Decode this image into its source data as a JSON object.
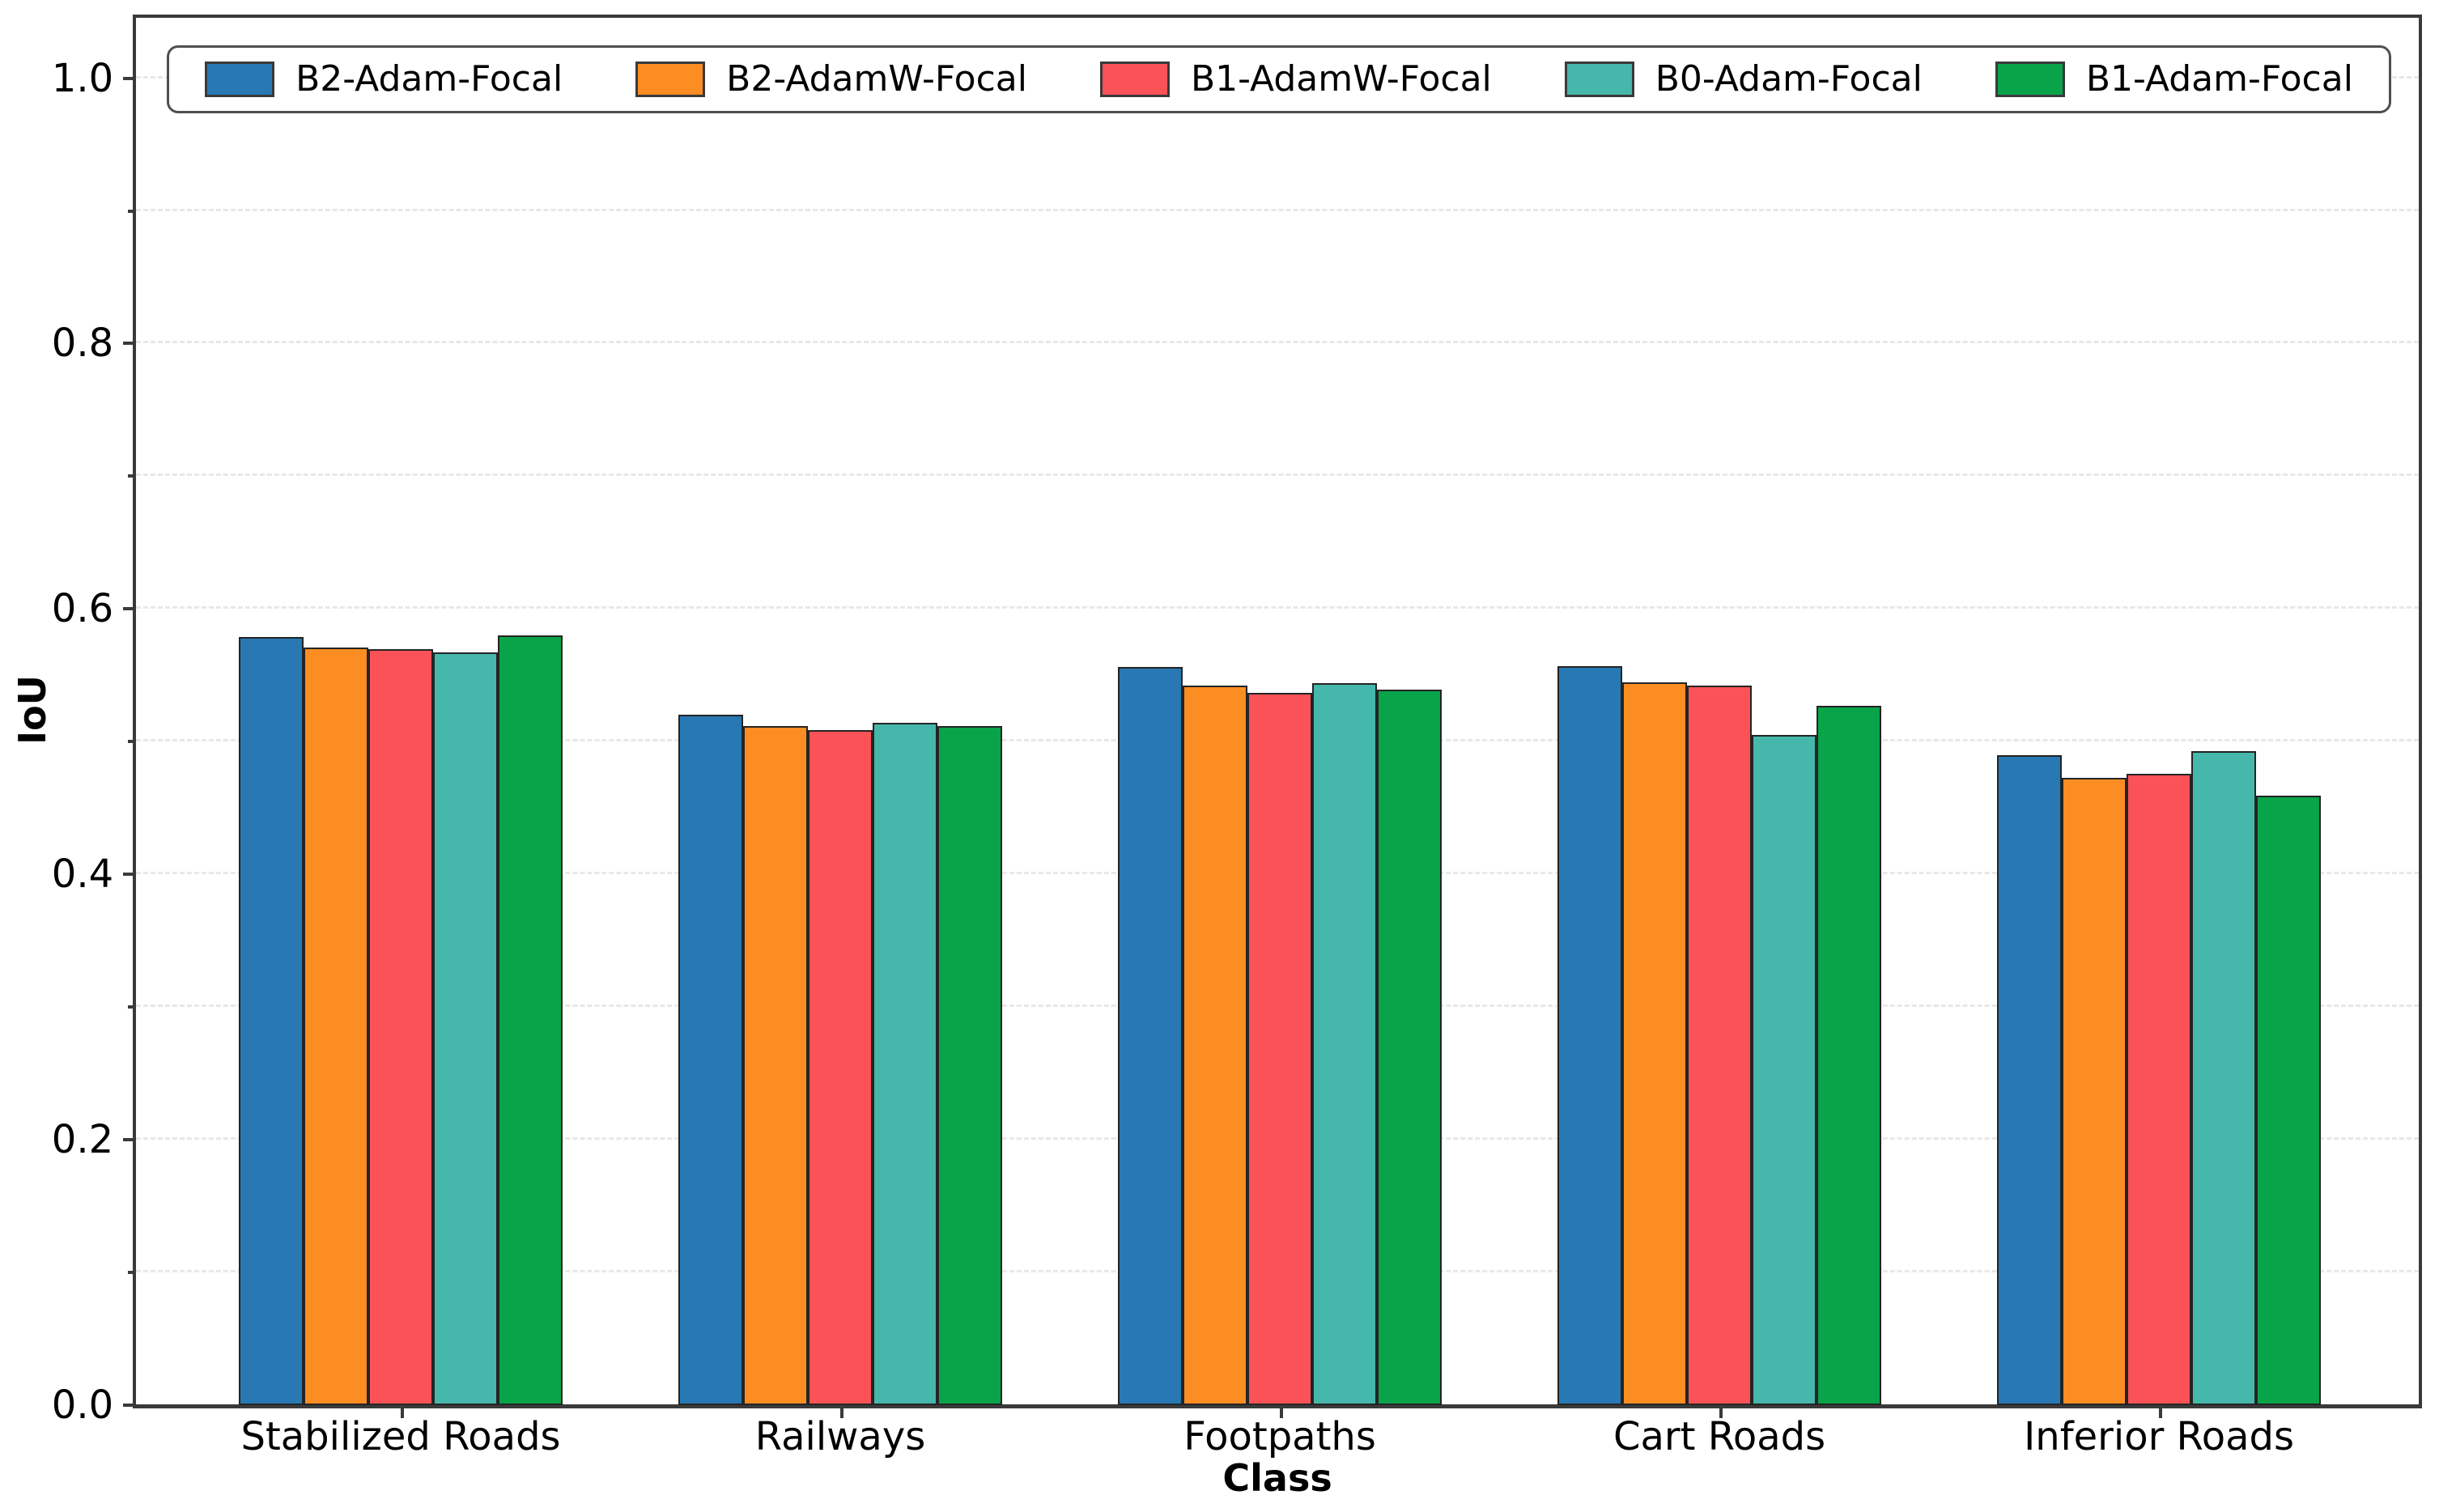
{
  "chart_data": {
    "type": "bar",
    "title": "",
    "xlabel": "Class",
    "ylabel": "IoU",
    "categories": [
      "Stabilized Roads",
      "Railways",
      "Footpaths",
      "Cart Roads",
      "Inferior Roads"
    ],
    "series": [
      {
        "name": "B2-Adam-Focal",
        "color": "#2878b4",
        "values": [
          0.579,
          0.52,
          0.556,
          0.557,
          0.49
        ]
      },
      {
        "name": "B2-AdamW-Focal",
        "color": "#fb8d22",
        "values": [
          0.571,
          0.512,
          0.542,
          0.545,
          0.473
        ]
      },
      {
        "name": "B1-AdamW-Focal",
        "color": "#fa5257",
        "values": [
          0.57,
          0.509,
          0.537,
          0.542,
          0.476
        ]
      },
      {
        "name": "B0-Adam-Focal",
        "color": "#45b7ab",
        "values": [
          0.567,
          0.514,
          0.544,
          0.505,
          0.493
        ]
      },
      {
        "name": "B1-Adam-Focal",
        "color": "#09a34a",
        "values": [
          0.58,
          0.512,
          0.539,
          0.527,
          0.459
        ]
      }
    ],
    "ylim": [
      0.0,
      1.048
    ],
    "xlim": [
      -0.602,
      4.591
    ],
    "ytick_labels": [
      "0.0",
      "0.2",
      "0.4",
      "0.6",
      "0.8",
      "1.0"
    ],
    "ytick_values": [
      0.0,
      0.2,
      0.4,
      0.6,
      0.8,
      1.0
    ],
    "ytick_minor_values": [
      0.1,
      0.3,
      0.5,
      0.7,
      0.9
    ],
    "grid": {
      "axis": "y",
      "style": "dashed",
      "step": 0.1,
      "color": "#e8e8e8"
    },
    "legend_position": "top-inside-horizontal",
    "bar_width": 0.1473,
    "bar_edge_color": "#242424",
    "axis_color": "#3a3a3a",
    "background": "#ffffff"
  }
}
